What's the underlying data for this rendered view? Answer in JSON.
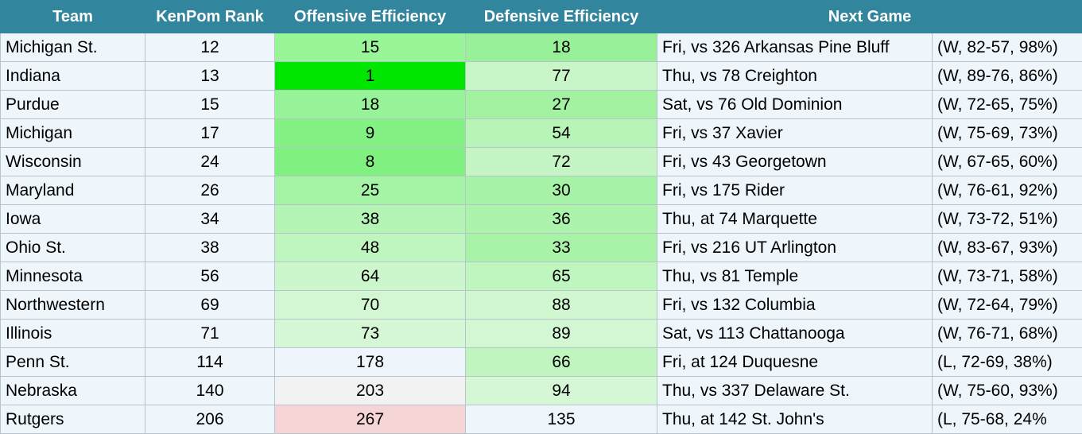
{
  "table": {
    "columns": [
      "Team",
      "KenPom Rank",
      "Offensive Efficiency",
      "Defensive Efficiency",
      "Next Game"
    ],
    "rows": [
      [
        "Michigan St.",
        12,
        15,
        18,
        "Fri, vs 326 Arkansas Pine Bluff",
        "(W, 82-57, 98%)"
      ],
      [
        "Indiana",
        13,
        1,
        77,
        "Thu, vs 78 Creighton",
        "(W, 89-76, 86%)"
      ],
      [
        "Purdue",
        15,
        18,
        27,
        "Sat, vs 76 Old Dominion",
        "(W, 72-65, 75%)"
      ],
      [
        "Michigan",
        17,
        9,
        54,
        "Fri, vs 37 Xavier",
        "(W, 75-69, 73%)"
      ],
      [
        "Wisconsin",
        24,
        8,
        72,
        "Fri, vs 43 Georgetown",
        "(W, 67-65, 60%)"
      ],
      [
        "Maryland",
        26,
        25,
        30,
        "Fri, vs 175 Rider",
        "(W, 76-61, 92%)"
      ],
      [
        "Iowa",
        34,
        38,
        36,
        "Thu, at 74 Marquette",
        "(W, 73-72, 51%)"
      ],
      [
        "Ohio St.",
        38,
        48,
        33,
        "Fri, vs 216 UT Arlington",
        "(W, 83-67, 93%)"
      ],
      [
        "Minnesota",
        56,
        64,
        65,
        "Thu, vs 81 Temple",
        "(W, 73-71, 58%)"
      ],
      [
        "Northwestern",
        69,
        70,
        88,
        "Fri, vs 132 Columbia",
        "(W, 72-64, 79%)"
      ],
      [
        "Illinois",
        71,
        73,
        89,
        "Sat, vs 113 Chattanooga",
        "(W, 76-71, 68%)"
      ],
      [
        "Penn St.",
        114,
        178,
        66,
        "Fri, at 124 Duquesne",
        "(L, 72-69, 38%)"
      ],
      [
        "Nebraska",
        140,
        203,
        94,
        "Thu, vs 337 Delaware St.",
        "(W, 75-60, 93%)"
      ],
      [
        "Rutgers",
        206,
        267,
        135,
        "Thu, at 142 St. John's",
        "(L, 75-68, 24%"
      ]
    ],
    "offensive_colors": [
      "#98f598",
      "#00e600",
      "#97f397",
      "#84f184",
      "#80f080",
      "#a5f3a5",
      "#b4f4b4",
      "#bff5bf",
      "#ccf6cc",
      "#d3f7d3",
      "#d6f7d6",
      "#eef6fb",
      "#f2f2f2",
      "#f5d5d5"
    ],
    "defensive_colors": [
      "#98f098",
      "#c9f6c9",
      "#a2f2a2",
      "#b8f4b8",
      "#c5f5c5",
      "#a6f2a6",
      "#acf3ac",
      "#a9f3a9",
      "#bff5bf",
      "#d1f7d1",
      "#d2f7d2",
      "#c0f5c0",
      "#d6f7d6",
      "#eef6fb"
    ]
  }
}
